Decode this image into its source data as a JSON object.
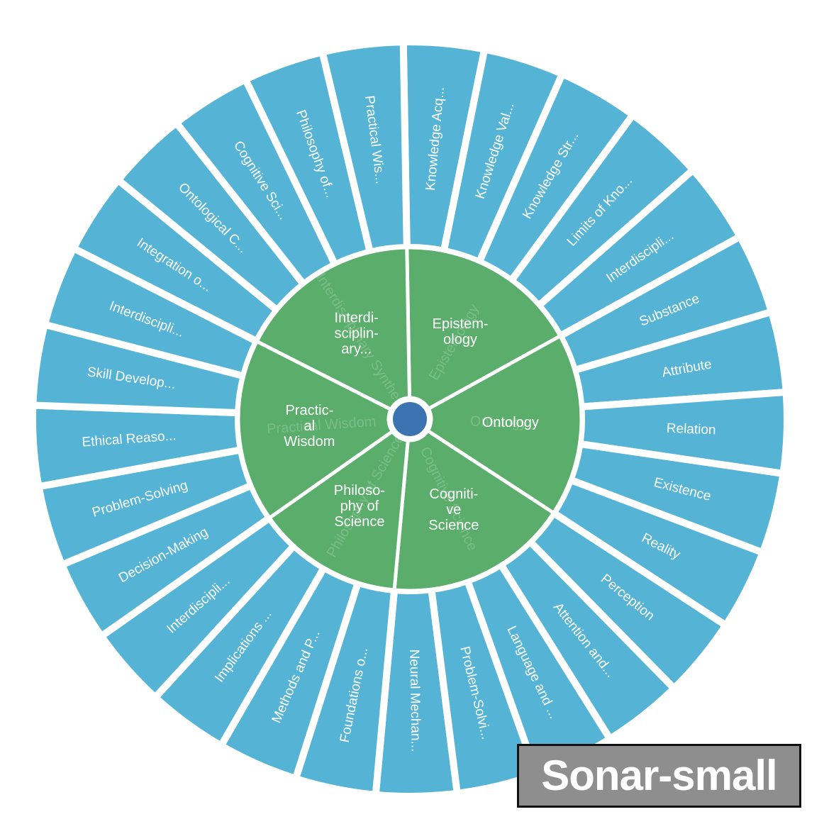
{
  "diagram": {
    "colors": {
      "outer_ring": "#55b4d6",
      "inner_ring": "#5aad6a",
      "center": "#3c74b2",
      "background": "#ffffff"
    },
    "categories": [
      {
        "label_lines": [
          "Epistem-",
          "ology"
        ],
        "ghost_label": "Epistemology",
        "children": [
          "Knowledge Acq...",
          "Knowledge Val...",
          "Knowledge Str...",
          "Limits of Kno...",
          "Interdiscipli..."
        ]
      },
      {
        "label_lines": [
          "Ontology"
        ],
        "ghost_label": "Ontology",
        "children": [
          "Substance",
          "Attribute",
          "Relation",
          "Existence",
          "Reality"
        ]
      },
      {
        "label_lines": [
          "Cogniti-",
          "ve",
          "Science"
        ],
        "ghost_label": "Cognitive Science",
        "children": [
          "Perception",
          "Attention and...",
          "Language and ...",
          "Problem-Solvi...",
          "Neural Mechan..."
        ]
      },
      {
        "label_lines": [
          "Philoso-",
          "phy of",
          "Science"
        ],
        "ghost_label": "Philosophy of Science",
        "children": [
          "Foundations o...",
          "Methods and P...",
          "Implications ...",
          "Interdiscipli..."
        ]
      },
      {
        "label_lines": [
          "Practic-",
          "al",
          "Wisdom"
        ],
        "ghost_label": "Practical Wisdom",
        "children": [
          "Decision-Making",
          "Problem-Solving",
          "Ethical Reaso...",
          "Skill Develop...",
          "Interdiscipli..."
        ]
      },
      {
        "label_lines": [
          "Interdi-",
          "sciplin-",
          "ary..."
        ],
        "ghost_label": "Interdisciplinary Synthesis",
        "children": [
          "Integration o...",
          "Ontological C...",
          "Cognitive Sci...",
          "Philosophy of...",
          "Practical Wis..."
        ]
      }
    ]
  },
  "watermark": {
    "text": "Sonar-small"
  }
}
